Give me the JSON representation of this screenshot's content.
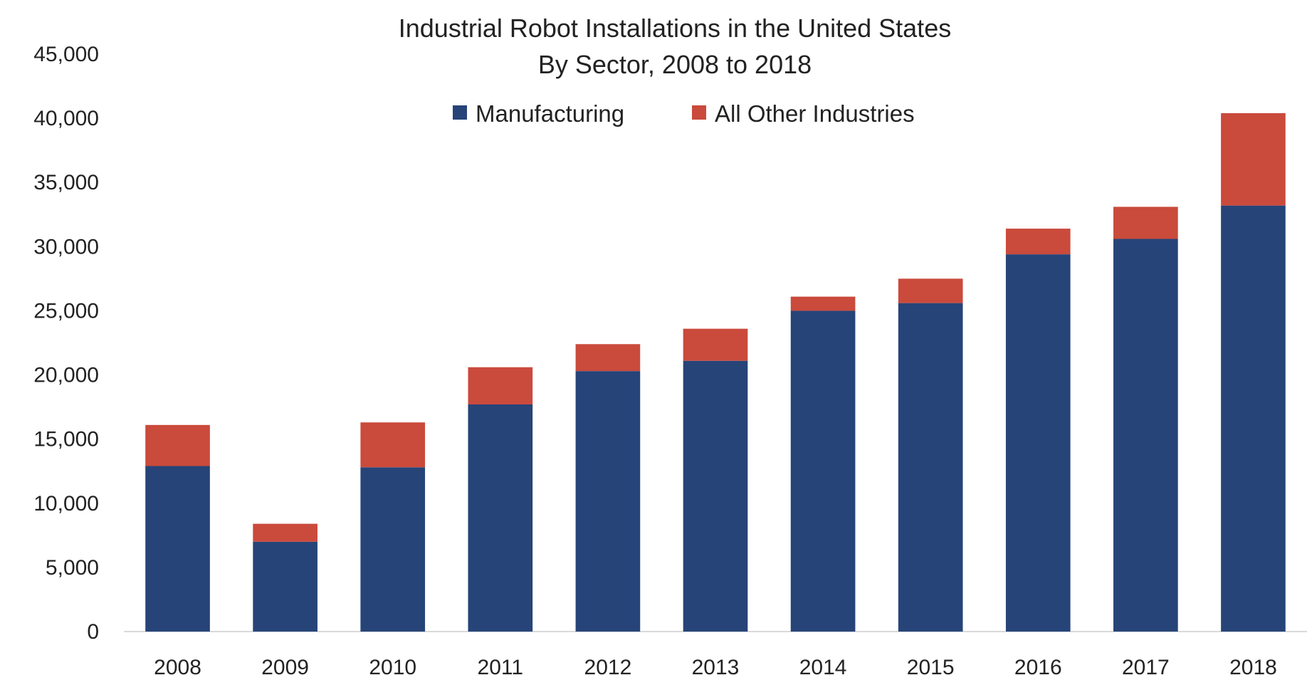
{
  "chart_data": {
    "type": "bar",
    "stacked": true,
    "title": "Industrial Robot Installations in the United States",
    "subtitle": "By Sector, 2008 to 2018",
    "xlabel": "",
    "ylabel": "",
    "categories": [
      "2008",
      "2009",
      "2010",
      "2011",
      "2012",
      "2013",
      "2014",
      "2015",
      "2016",
      "2017",
      "2018"
    ],
    "series": [
      {
        "name": "Manufacturing",
        "color": "#264478",
        "values": [
          12900,
          7000,
          12800,
          17700,
          20300,
          21100,
          25000,
          25600,
          29400,
          30600,
          33200
        ]
      },
      {
        "name": "All Other Industries",
        "color": "#CA4A3C",
        "values": [
          3200,
          1400,
          3500,
          2900,
          2100,
          2500,
          1100,
          1900,
          2000,
          2500,
          7200
        ]
      }
    ],
    "ylim": [
      0,
      45000
    ],
    "yticks": [
      "0",
      "5,000",
      "10,000",
      "15,000",
      "20,000",
      "25,000",
      "30,000",
      "35,000",
      "40,000",
      "45,000"
    ],
    "grid": false,
    "legend": {
      "position": "top-center"
    }
  }
}
